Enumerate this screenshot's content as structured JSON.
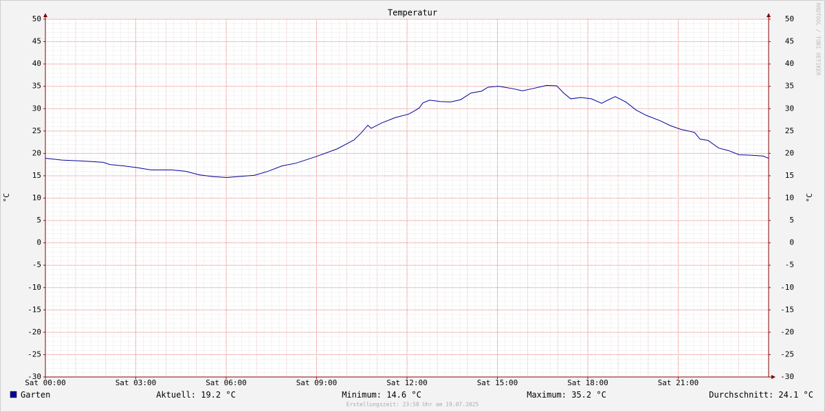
{
  "chart_data": {
    "type": "line",
    "title": "Temperatur",
    "y_label": "°C",
    "y2_label": "°C",
    "watermark": "RRDTOOL / TOBI OETIKER",
    "xlim": [
      0,
      24
    ],
    "xticks": [
      {
        "value": 0,
        "label": "Sat 00:00"
      },
      {
        "value": 3,
        "label": "Sat 03:00"
      },
      {
        "value": 6,
        "label": "Sat 06:00"
      },
      {
        "value": 9,
        "label": "Sat 09:00"
      },
      {
        "value": 12,
        "label": "Sat 12:00"
      },
      {
        "value": 15,
        "label": "Sat 15:00"
      },
      {
        "value": 18,
        "label": "Sat 18:00"
      },
      {
        "value": 21,
        "label": "Sat 21:00"
      }
    ],
    "ylim": [
      -30,
      50
    ],
    "yticks": [
      -30,
      -25,
      -20,
      -15,
      -10,
      -5,
      0,
      5,
      10,
      15,
      20,
      25,
      30,
      35,
      40,
      45,
      50
    ],
    "y2lim": [
      -30,
      50
    ],
    "y2ticks": [
      -30,
      -25,
      -20,
      -15,
      -10,
      -5,
      0,
      5,
      10,
      15,
      20,
      25,
      30,
      35,
      40,
      45,
      50
    ],
    "grid": true,
    "x": [
      0,
      0.55,
      1.23,
      1.92,
      2.14,
      2.6,
      3.06,
      3.51,
      4.2,
      4.65,
      5.11,
      5.57,
      6.02,
      6.37,
      6.94,
      7.39,
      7.85,
      8.31,
      8.99,
      9.68,
      10.24,
      10.47,
      10.7,
      10.81,
      11.16,
      11.61,
      12.06,
      12.3,
      12.41,
      12.53,
      12.75,
      13.1,
      13.44,
      13.78,
      14.12,
      14.47,
      14.69,
      15.04,
      15.49,
      15.83,
      16.18,
      16.63,
      16.97,
      17.2,
      17.43,
      17.77,
      18.12,
      18.46,
      18.69,
      18.91,
      19.26,
      19.6,
      19.94,
      20.4,
      20.74,
      21.08,
      21.54,
      21.72,
      21.99,
      22.34,
      22.68,
      23.02,
      23.36,
      23.82,
      24
    ],
    "series": [
      {
        "name": "Garten",
        "color": "#000099",
        "values": [
          18.9,
          18.5,
          18.3,
          18.0,
          17.5,
          17.2,
          16.8,
          16.3,
          16.3,
          16.0,
          15.2,
          14.8,
          14.6,
          14.8,
          15.1,
          16.0,
          17.2,
          17.8,
          19.3,
          21.0,
          23.0,
          24.5,
          26.3,
          25.6,
          26.8,
          28.0,
          28.8,
          29.7,
          30.2,
          31.3,
          31.9,
          31.6,
          31.5,
          32.0,
          33.5,
          33.9,
          34.8,
          35.0,
          34.5,
          34.0,
          34.5,
          35.2,
          35.1,
          33.5,
          32.2,
          32.5,
          32.2,
          31.2,
          32.0,
          32.7,
          31.5,
          29.7,
          28.5,
          27.3,
          26.2,
          25.4,
          24.7,
          23.2,
          22.9,
          21.2,
          20.6,
          19.7,
          19.6,
          19.4,
          18.9
        ]
      }
    ],
    "legend_stats": [
      "Aktuell: 19.2 °C",
      "Minimum: 14.6 °C",
      "Maximum: 35.2 °C",
      "Durchschnitt: 24.1 °C"
    ],
    "footer": "Erstellungszeit: 23:58 Uhr am 19.07.2025"
  }
}
